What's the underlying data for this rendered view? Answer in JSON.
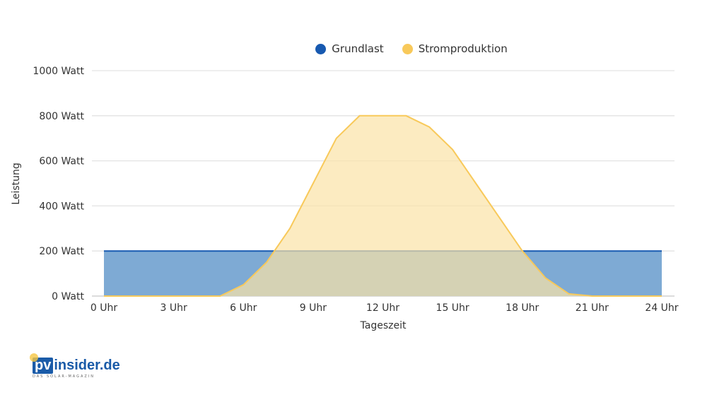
{
  "legend": [
    {
      "label": "Grundlast",
      "color": "#1759b0"
    },
    {
      "label": "Stromproduktion",
      "color": "#f8c95a"
    }
  ],
  "logo": {
    "prefix": "pv",
    "main": "insider.de",
    "tagline": "DAS SOLAR-MAGAZIN"
  },
  "chart_data": {
    "type": "area",
    "title": "",
    "xlabel": "Tageszeit",
    "ylabel": "Leistung",
    "x_ticks": [
      "0 Uhr",
      "3 Uhr",
      "6 Uhr",
      "9 Uhr",
      "12 Uhr",
      "15 Uhr",
      "18 Uhr",
      "21 Uhr",
      "24 Uhr"
    ],
    "y_ticks": [
      "0 Watt",
      "200 Watt",
      "400 Watt",
      "600 Watt",
      "800 Watt",
      "1000 Watt"
    ],
    "xlim": [
      0,
      24
    ],
    "ylim": [
      0,
      1000
    ],
    "grid": true,
    "legend_position": "top",
    "x": [
      0,
      1,
      2,
      3,
      4,
      5,
      6,
      7,
      8,
      9,
      10,
      11,
      12,
      13,
      14,
      15,
      16,
      17,
      18,
      19,
      20,
      21,
      22,
      23,
      24
    ],
    "series": [
      {
        "name": "Grundlast",
        "color": "#1759b0",
        "fill": "#7eaad4",
        "values": [
          200,
          200,
          200,
          200,
          200,
          200,
          200,
          200,
          200,
          200,
          200,
          200,
          200,
          200,
          200,
          200,
          200,
          200,
          200,
          200,
          200,
          200,
          200,
          200,
          200
        ]
      },
      {
        "name": "Stromproduktion",
        "color": "#f8c95a",
        "fill": "#fbe2a6",
        "values": [
          0,
          0,
          0,
          0,
          0,
          0,
          50,
          150,
          300,
          500,
          700,
          800,
          800,
          800,
          750,
          650,
          500,
          350,
          200,
          80,
          10,
          0,
          0,
          0,
          0
        ]
      }
    ]
  }
}
